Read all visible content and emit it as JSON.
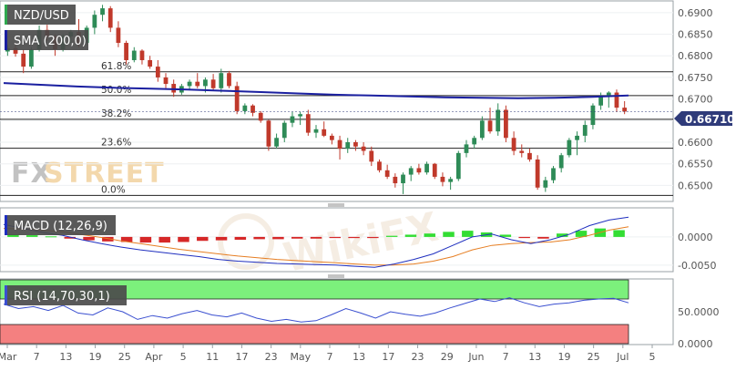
{
  "chart_data": [
    {
      "type": "candlestick",
      "title": "NZD/USD",
      "overlay_label": "SMA (200,0)",
      "last_price_label": "0.66710",
      "brand": "FXSTREET",
      "watermark": "WikiFX",
      "ylim": [
        0.6465,
        0.6925
      ],
      "y_ticks": [
        "0.6900",
        "0.6850",
        "0.6800",
        "0.6750",
        "0.6700",
        "0.6650",
        "0.6600",
        "0.6550",
        "0.6500"
      ],
      "fib_levels": [
        {
          "label": "61.8%",
          "value": 0.6763
        },
        {
          "label": "50.0%",
          "value": 0.6708
        },
        {
          "label": "38.2%",
          "value": 0.6653
        },
        {
          "label": "23.6%",
          "value": 0.6586
        },
        {
          "label": "0.0%",
          "value": 0.6477
        }
      ],
      "series": [
        {
          "name": "SMA (200,0)",
          "values": [
            0.6737,
            0.6733,
            0.6729,
            0.6726,
            0.6724,
            0.6722,
            0.6719,
            0.6716,
            0.6713,
            0.671,
            0.6708,
            0.6706,
            0.6704,
            0.6703,
            0.6702,
            0.6703,
            0.6705,
            0.6708
          ]
        }
      ],
      "candles": [
        [
          0.681,
          0.6825,
          0.68,
          0.6818
        ],
        [
          0.6818,
          0.683,
          0.6798,
          0.6805
        ],
        [
          0.6805,
          0.6815,
          0.676,
          0.6775
        ],
        [
          0.6775,
          0.682,
          0.677,
          0.6815
        ],
        [
          0.6815,
          0.687,
          0.681,
          0.686
        ],
        [
          0.686,
          0.6872,
          0.6835,
          0.6845
        ],
        [
          0.6845,
          0.685,
          0.68,
          0.6815
        ],
        [
          0.6815,
          0.685,
          0.681,
          0.6845
        ],
        [
          0.6845,
          0.686,
          0.683,
          0.6855
        ],
        [
          0.6855,
          0.6885,
          0.682,
          0.683
        ],
        [
          0.683,
          0.687,
          0.6825,
          0.6865
        ],
        [
          0.6865,
          0.6905,
          0.685,
          0.6895
        ],
        [
          0.6895,
          0.6918,
          0.688,
          0.691
        ],
        [
          0.691,
          0.6915,
          0.6855,
          0.6865
        ],
        [
          0.6865,
          0.688,
          0.682,
          0.683
        ],
        [
          0.683,
          0.6835,
          0.678,
          0.679
        ],
        [
          0.679,
          0.682,
          0.6785,
          0.6812
        ],
        [
          0.6812,
          0.6815,
          0.678,
          0.679
        ],
        [
          0.679,
          0.68,
          0.677,
          0.6775
        ],
        [
          0.6775,
          0.679,
          0.674,
          0.675
        ],
        [
          0.675,
          0.676,
          0.6725,
          0.6735
        ],
        [
          0.6735,
          0.6745,
          0.6705,
          0.6715
        ],
        [
          0.6715,
          0.6735,
          0.671,
          0.673
        ],
        [
          0.673,
          0.6745,
          0.672,
          0.674
        ],
        [
          0.674,
          0.676,
          0.6725,
          0.673
        ],
        [
          0.673,
          0.675,
          0.6715,
          0.6745
        ],
        [
          0.6745,
          0.6758,
          0.672,
          0.6725
        ],
        [
          0.6725,
          0.677,
          0.6715,
          0.676
        ],
        [
          0.676,
          0.6765,
          0.6725,
          0.673
        ],
        [
          0.673,
          0.674,
          0.6665,
          0.6672
        ],
        [
          0.6672,
          0.669,
          0.6665,
          0.6685
        ],
        [
          0.6685,
          0.6688,
          0.666,
          0.6668
        ],
        [
          0.6668,
          0.6672,
          0.6645,
          0.665
        ],
        [
          0.665,
          0.6652,
          0.658,
          0.659
        ],
        [
          0.659,
          0.662,
          0.6585,
          0.661
        ],
        [
          0.661,
          0.665,
          0.66,
          0.6645
        ],
        [
          0.6645,
          0.667,
          0.6635,
          0.666
        ],
        [
          0.666,
          0.667,
          0.664,
          0.6665
        ],
        [
          0.6665,
          0.6675,
          0.6615,
          0.6622
        ],
        [
          0.6622,
          0.664,
          0.661,
          0.663
        ],
        [
          0.663,
          0.6648,
          0.6612,
          0.6615
        ],
        [
          0.6615,
          0.662,
          0.6595,
          0.6605
        ],
        [
          0.6605,
          0.6615,
          0.656,
          0.6585
        ],
        [
          0.6585,
          0.661,
          0.6575,
          0.66
        ],
        [
          0.66,
          0.6605,
          0.658,
          0.659
        ],
        [
          0.659,
          0.66,
          0.657,
          0.658
        ],
        [
          0.658,
          0.659,
          0.6545,
          0.6555
        ],
        [
          0.6555,
          0.656,
          0.653,
          0.6535
        ],
        [
          0.6535,
          0.6548,
          0.6515,
          0.652
        ],
        [
          0.652,
          0.6528,
          0.6495,
          0.6505
        ],
        [
          0.6505,
          0.653,
          0.648,
          0.6525
        ],
        [
          0.6525,
          0.6545,
          0.651,
          0.654
        ],
        [
          0.654,
          0.655,
          0.6525,
          0.653
        ],
        [
          0.653,
          0.6555,
          0.6525,
          0.655
        ],
        [
          0.655,
          0.6552,
          0.6515,
          0.652
        ],
        [
          0.652,
          0.653,
          0.6498,
          0.6508
        ],
        [
          0.6508,
          0.652,
          0.649,
          0.6515
        ],
        [
          0.6515,
          0.658,
          0.651,
          0.6575
        ],
        [
          0.6575,
          0.6605,
          0.6565,
          0.6595
        ],
        [
          0.6595,
          0.6615,
          0.6585,
          0.661
        ],
        [
          0.661,
          0.666,
          0.6605,
          0.665
        ],
        [
          0.665,
          0.668,
          0.662,
          0.6625
        ],
        [
          0.6625,
          0.669,
          0.6615,
          0.6675
        ],
        [
          0.6675,
          0.6685,
          0.66,
          0.661
        ],
        [
          0.661,
          0.6625,
          0.657,
          0.658
        ],
        [
          0.658,
          0.6595,
          0.6565,
          0.6575
        ],
        [
          0.6575,
          0.6585,
          0.6555,
          0.656
        ],
        [
          0.656,
          0.657,
          0.649,
          0.6495
        ],
        [
          0.6495,
          0.652,
          0.6485,
          0.6512
        ],
        [
          0.6512,
          0.6545,
          0.6505,
          0.654
        ],
        [
          0.654,
          0.6575,
          0.653,
          0.657
        ],
        [
          0.657,
          0.661,
          0.6565,
          0.6605
        ],
        [
          0.6605,
          0.6625,
          0.657,
          0.6615
        ],
        [
          0.6615,
          0.665,
          0.66,
          0.664
        ],
        [
          0.664,
          0.669,
          0.663,
          0.6685
        ],
        [
          0.6685,
          0.6715,
          0.6675,
          0.6705
        ],
        [
          0.6705,
          0.6718,
          0.668,
          0.6715
        ],
        [
          0.6715,
          0.6722,
          0.667,
          0.668
        ],
        [
          0.668,
          0.6695,
          0.6665,
          0.6671
        ]
      ]
    },
    {
      "type": "line+bar",
      "title": "MACD (12,26,9)",
      "ylim": [
        -0.006,
        0.005
      ],
      "y_ticks": [
        "0.0000",
        "-0.0050"
      ],
      "series": [
        {
          "name": "MACD",
          "values": [
            0.0022,
            0.0015,
            0.0008,
            0.0003,
            -0.0005,
            -0.0012,
            -0.0018,
            -0.0023,
            -0.0027,
            -0.0031,
            -0.0035,
            -0.004,
            -0.0043,
            -0.0045,
            -0.0047,
            -0.0048,
            -0.0049,
            -0.005,
            -0.0052,
            -0.0054,
            -0.0048,
            -0.004,
            -0.003,
            -0.0015,
            0.0,
            0.0005,
            -0.0005,
            -0.0012,
            -0.0005,
            0.0005,
            0.002,
            0.003,
            0.0035
          ]
        },
        {
          "name": "Signal",
          "values": [
            0.0015,
            0.0014,
            0.0012,
            0.0009,
            0.0004,
            -0.0001,
            -0.0007,
            -0.0012,
            -0.0017,
            -0.0022,
            -0.0026,
            -0.003,
            -0.0034,
            -0.0037,
            -0.004,
            -0.0042,
            -0.0044,
            -0.0046,
            -0.0048,
            -0.005,
            -0.005,
            -0.0048,
            -0.0043,
            -0.0035,
            -0.0023,
            -0.0015,
            -0.0012,
            -0.001,
            -0.0009,
            -0.0005,
            0.0003,
            0.0012,
            0.0018
          ]
        },
        {
          "name": "Histogram",
          "values": [
            0.0004,
            0.0003,
            0.0001,
            -0.0003,
            -0.0006,
            -0.0008,
            -0.0009,
            -0.001,
            -0.001,
            -0.0009,
            -0.0007,
            -0.0006,
            -0.0005,
            -0.0004,
            -0.0004,
            -0.0003,
            -0.0003,
            -0.0002,
            -0.0002,
            -0.0002,
            0.0002,
            0.0004,
            0.0006,
            0.0009,
            0.0011,
            0.0008,
            0.0004,
            -0.0002,
            -0.0003,
            0.0006,
            0.0011,
            0.0015,
            0.0012
          ]
        }
      ]
    },
    {
      "type": "line",
      "title": "RSI (14,70,30,1)",
      "ylim": [
        0,
        100
      ],
      "y_ticks": [
        "50.0000",
        "0.0000"
      ],
      "bands": [
        70,
        30
      ],
      "series": [
        {
          "name": "RSI",
          "values": [
            62,
            55,
            58,
            52,
            60,
            48,
            45,
            56,
            50,
            38,
            44,
            40,
            47,
            52,
            45,
            42,
            48,
            40,
            35,
            38,
            34,
            36,
            45,
            55,
            48,
            40,
            50,
            46,
            43,
            48,
            56,
            63,
            70,
            66,
            72,
            64,
            58,
            62,
            64,
            68,
            70,
            71,
            64
          ]
        }
      ]
    }
  ],
  "x_labels": [
    "Mar",
    "7",
    "13",
    "19",
    "25",
    "Apr",
    "5",
    "11",
    "17",
    "23",
    "May",
    "7",
    "13",
    "17",
    "23",
    "29",
    "Jun",
    "7",
    "13",
    "19",
    "25",
    "Jul",
    "5"
  ],
  "colors": {
    "bull": "#2e8b57",
    "bear": "#c0392b",
    "sma": "#1a1fa0",
    "macd_line": "#1f2fbf",
    "signal_line": "#e67e22",
    "rsi_line": "#3a4fd0",
    "hist_pos": "#33dd33",
    "hist_neg": "#d62828",
    "rsi_over": "#7cf07c",
    "rsi_under": "#f48080"
  }
}
